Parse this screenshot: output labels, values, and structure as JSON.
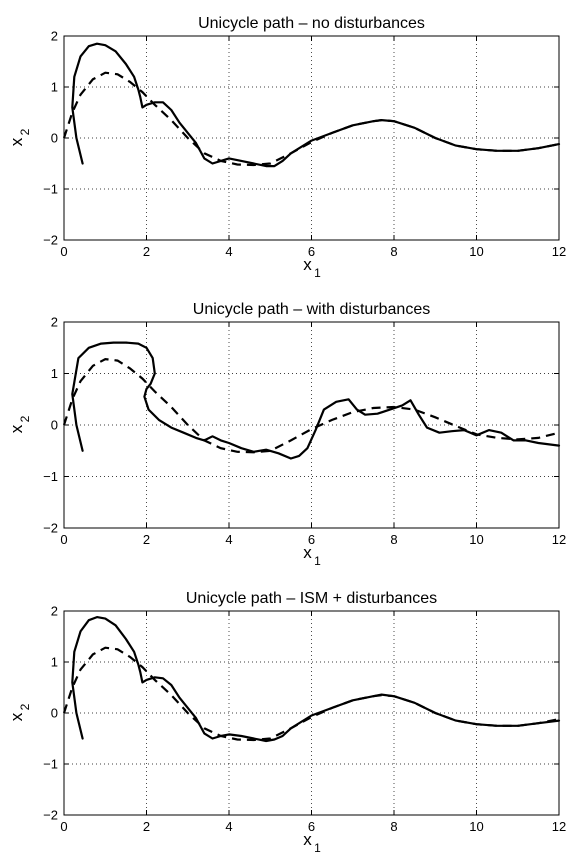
{
  "chart_data": [
    {
      "type": "line",
      "title": "Unicycle path – no disturbances",
      "xlabel": "x",
      "xlabel_sub": "1",
      "ylabel": "x",
      "ylabel_sub": "2",
      "xlim": [
        0,
        12
      ],
      "ylim": [
        -2,
        2
      ],
      "xticks": [
        "0",
        "2",
        "4",
        "6",
        "8",
        "10",
        "12"
      ],
      "yticks": [
        "−2",
        "−1",
        "0",
        "1",
        "2"
      ],
      "grid": true,
      "series": [
        {
          "style": "solid",
          "x": [
            0.45,
            0.3,
            0.2,
            0.25,
            0.4,
            0.6,
            0.8,
            1.0,
            1.25,
            1.5,
            1.7,
            1.8,
            1.85,
            1.9,
            2.0,
            2.2,
            2.4,
            2.6,
            2.8,
            3.0,
            3.2,
            3.4,
            3.6,
            3.8,
            4.0,
            4.3,
            4.6,
            4.9,
            5.1,
            5.3,
            5.5,
            6.0,
            6.5,
            7.0,
            7.5,
            7.7,
            8.0,
            8.5,
            9.0,
            9.5,
            10.0,
            10.5,
            11.0,
            11.5,
            12.0
          ],
          "y": [
            -0.5,
            0.0,
            0.6,
            1.2,
            1.6,
            1.8,
            1.85,
            1.82,
            1.7,
            1.45,
            1.2,
            0.95,
            0.8,
            0.6,
            0.65,
            0.7,
            0.7,
            0.55,
            0.3,
            0.1,
            -0.1,
            -0.4,
            -0.5,
            -0.45,
            -0.4,
            -0.45,
            -0.5,
            -0.55,
            -0.55,
            -0.45,
            -0.3,
            -0.05,
            0.1,
            0.25,
            0.33,
            0.35,
            0.33,
            0.2,
            0.0,
            -0.15,
            -0.22,
            -0.25,
            -0.25,
            -0.2,
            -0.12
          ]
        },
        {
          "style": "dashed",
          "x": [
            0.0,
            0.2,
            0.4,
            0.7,
            1.0,
            1.3,
            1.6,
            1.9,
            2.2,
            2.6,
            3.0,
            3.4,
            3.8,
            4.2,
            4.6,
            5.0,
            5.5,
            6.0,
            6.5,
            7.0,
            7.5,
            7.7,
            8.0,
            8.5,
            9.0,
            9.5,
            10.0,
            10.5,
            11.0,
            11.5,
            12.0
          ],
          "y": [
            0.0,
            0.5,
            0.85,
            1.15,
            1.28,
            1.25,
            1.1,
            0.9,
            0.65,
            0.35,
            0.0,
            -0.3,
            -0.45,
            -0.52,
            -0.53,
            -0.5,
            -0.3,
            -0.08,
            0.1,
            0.25,
            0.33,
            0.35,
            0.33,
            0.2,
            0.0,
            -0.15,
            -0.22,
            -0.25,
            -0.25,
            -0.2,
            -0.12
          ]
        }
      ]
    },
    {
      "type": "line",
      "title": "Unicycle path – with disturbances",
      "xlabel": "x",
      "xlabel_sub": "1",
      "ylabel": "x",
      "ylabel_sub": "2",
      "xlim": [
        0,
        12
      ],
      "ylim": [
        -2,
        2
      ],
      "xticks": [
        "0",
        "2",
        "4",
        "6",
        "8",
        "10",
        "12"
      ],
      "yticks": [
        "−2",
        "−1",
        "0",
        "1",
        "2"
      ],
      "grid": true,
      "series": [
        {
          "style": "solid",
          "x": [
            0.45,
            0.3,
            0.2,
            0.35,
            0.6,
            0.9,
            1.2,
            1.5,
            1.8,
            2.0,
            2.15,
            2.2,
            2.1,
            2.0,
            1.95,
            2.05,
            2.3,
            2.6,
            2.9,
            3.2,
            3.4,
            3.6,
            3.8,
            4.0,
            4.3,
            4.6,
            4.9,
            5.2,
            5.5,
            5.7,
            5.9,
            6.1,
            6.3,
            6.6,
            6.9,
            7.1,
            7.3,
            7.6,
            7.9,
            8.2,
            8.4,
            8.6,
            8.8,
            9.1,
            9.4,
            9.7,
            10.0,
            10.3,
            10.6,
            10.9,
            11.2,
            11.5,
            12.0
          ],
          "y": [
            -0.5,
            0.0,
            0.6,
            1.3,
            1.5,
            1.58,
            1.6,
            1.6,
            1.58,
            1.5,
            1.3,
            1.0,
            0.8,
            0.7,
            0.55,
            0.3,
            0.1,
            -0.05,
            -0.15,
            -0.25,
            -0.3,
            -0.22,
            -0.3,
            -0.35,
            -0.45,
            -0.52,
            -0.48,
            -0.55,
            -0.65,
            -0.6,
            -0.45,
            -0.1,
            0.3,
            0.45,
            0.5,
            0.3,
            0.2,
            0.22,
            0.3,
            0.38,
            0.48,
            0.2,
            -0.05,
            -0.15,
            -0.12,
            -0.1,
            -0.2,
            -0.1,
            -0.15,
            -0.3,
            -0.3,
            -0.35,
            -0.4
          ]
        },
        {
          "style": "dashed",
          "x": [
            0.0,
            0.2,
            0.4,
            0.7,
            1.0,
            1.3,
            1.6,
            1.9,
            2.2,
            2.6,
            3.0,
            3.4,
            3.8,
            4.2,
            4.6,
            5.0,
            5.5,
            6.0,
            6.5,
            7.0,
            7.5,
            8.0,
            8.5,
            9.0,
            9.5,
            10.0,
            10.5,
            11.0,
            11.5,
            12.0
          ],
          "y": [
            0.0,
            0.5,
            0.85,
            1.15,
            1.28,
            1.25,
            1.1,
            0.9,
            0.65,
            0.35,
            0.0,
            -0.3,
            -0.45,
            -0.52,
            -0.53,
            -0.5,
            -0.3,
            -0.08,
            0.1,
            0.25,
            0.33,
            0.35,
            0.3,
            0.15,
            -0.02,
            -0.18,
            -0.25,
            -0.28,
            -0.25,
            -0.15
          ]
        }
      ]
    },
    {
      "type": "line",
      "title": "Unicycle path – ISM + disturbances",
      "xlabel": "x",
      "xlabel_sub": "1",
      "ylabel": "x",
      "ylabel_sub": "2",
      "xlim": [
        0,
        12
      ],
      "ylim": [
        -2,
        2
      ],
      "xticks": [
        "0",
        "2",
        "4",
        "6",
        "8",
        "10",
        "12"
      ],
      "yticks": [
        "−2",
        "−1",
        "0",
        "1",
        "2"
      ],
      "grid": true,
      "series": [
        {
          "style": "solid",
          "x": [
            0.45,
            0.3,
            0.2,
            0.25,
            0.4,
            0.6,
            0.8,
            1.0,
            1.25,
            1.5,
            1.7,
            1.8,
            1.85,
            1.9,
            2.0,
            2.2,
            2.4,
            2.6,
            2.8,
            3.0,
            3.2,
            3.4,
            3.6,
            3.8,
            4.0,
            4.3,
            4.6,
            4.9,
            5.1,
            5.3,
            5.5,
            6.0,
            6.5,
            7.0,
            7.5,
            7.7,
            8.0,
            8.5,
            9.0,
            9.5,
            10.0,
            10.5,
            11.0,
            11.5,
            12.0
          ],
          "y": [
            -0.5,
            0.0,
            0.6,
            1.2,
            1.6,
            1.82,
            1.88,
            1.85,
            1.72,
            1.45,
            1.2,
            0.95,
            0.8,
            0.6,
            0.65,
            0.7,
            0.68,
            0.55,
            0.3,
            0.1,
            -0.1,
            -0.4,
            -0.5,
            -0.45,
            -0.42,
            -0.45,
            -0.5,
            -0.55,
            -0.52,
            -0.45,
            -0.3,
            -0.05,
            0.1,
            0.25,
            0.33,
            0.36,
            0.33,
            0.2,
            0.0,
            -0.15,
            -0.22,
            -0.25,
            -0.25,
            -0.2,
            -0.15
          ]
        },
        {
          "style": "dashed",
          "x": [
            0.0,
            0.2,
            0.4,
            0.7,
            1.0,
            1.3,
            1.6,
            1.9,
            2.2,
            2.6,
            3.0,
            3.4,
            3.8,
            4.2,
            4.6,
            5.0,
            5.5,
            6.0,
            6.5,
            7.0,
            7.5,
            7.7,
            8.0,
            8.5,
            9.0,
            9.5,
            10.0,
            10.5,
            11.0,
            11.5,
            12.0
          ],
          "y": [
            0.0,
            0.5,
            0.85,
            1.15,
            1.28,
            1.25,
            1.1,
            0.9,
            0.65,
            0.35,
            0.0,
            -0.3,
            -0.45,
            -0.52,
            -0.53,
            -0.5,
            -0.3,
            -0.08,
            0.1,
            0.25,
            0.33,
            0.35,
            0.33,
            0.2,
            0.0,
            -0.15,
            -0.22,
            -0.25,
            -0.25,
            -0.2,
            -0.12
          ]
        }
      ]
    }
  ]
}
